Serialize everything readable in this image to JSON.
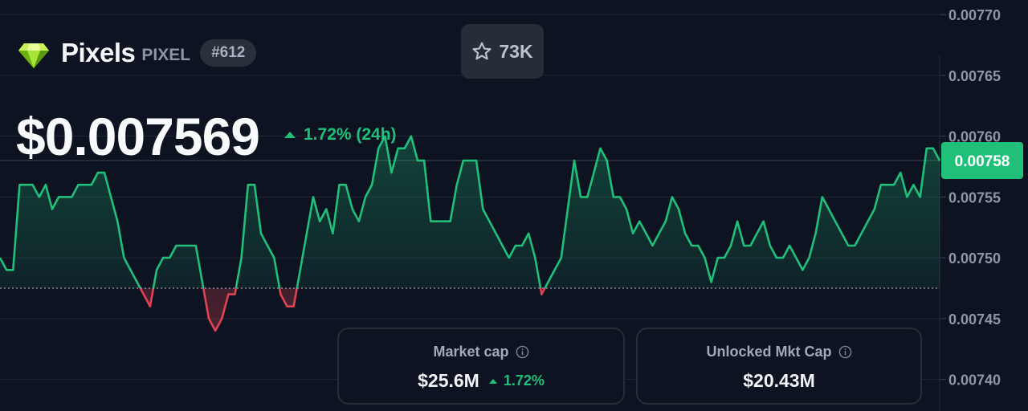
{
  "coin": {
    "name": "Pixels",
    "symbol": "PIXEL",
    "rank": "#612"
  },
  "watchlist": {
    "count": "73K",
    "icon": "star-icon"
  },
  "price": {
    "value": "$0.007569",
    "change": "1.72% (24h)"
  },
  "cards": [
    {
      "label": "Market cap",
      "value": "$25.6M",
      "change": "1.72%",
      "icon": "info-icon"
    },
    {
      "label": "Unlocked Mkt Cap",
      "value": "$20.43M",
      "icon": "info-icon"
    }
  ],
  "colors": {
    "background": "#0d1320",
    "up": "#20c07b",
    "down": "#e04354",
    "grid": "#202634",
    "current_price_tag": "#20c07b"
  },
  "chart_data": {
    "type": "area",
    "y_ticks": [
      "0.00770",
      "0.00765",
      "0.00760",
      "0.00755",
      "0.00750",
      "0.00745",
      "0.00740"
    ],
    "ylim": [
      0.007374,
      0.007712
    ],
    "current_price_label": "0.00758",
    "current_price": 0.00758,
    "baseline": 0.007475,
    "grid": true,
    "series": [
      {
        "values": [
          0.0075,
          0.00749,
          0.00749,
          0.00756,
          0.00756,
          0.00756,
          0.00755,
          0.00756,
          0.00754,
          0.00755,
          0.00755,
          0.00755,
          0.00756,
          0.00756,
          0.00756,
          0.00757,
          0.00757,
          0.00755,
          0.00753,
          0.0075,
          0.00749,
          0.00748,
          0.00747,
          0.00746,
          0.00749,
          0.0075,
          0.0075,
          0.00751,
          0.00751,
          0.00751,
          0.00751,
          0.00748,
          0.00745,
          0.00744,
          0.00745,
          0.00747,
          0.00747,
          0.0075,
          0.00756,
          0.00756,
          0.00752,
          0.00751,
          0.0075,
          0.00747,
          0.00746,
          0.00746,
          0.00749,
          0.00752,
          0.00755,
          0.00753,
          0.00754,
          0.00752,
          0.00756,
          0.00756,
          0.00754,
          0.00753,
          0.00755,
          0.00756,
          0.00759,
          0.0076,
          0.00757,
          0.00759,
          0.00759,
          0.0076,
          0.00758,
          0.00758,
          0.00753,
          0.00753,
          0.00753,
          0.00753,
          0.00756,
          0.00758,
          0.00758,
          0.00758,
          0.00754,
          0.00753,
          0.00752,
          0.00751,
          0.0075,
          0.00751,
          0.00751,
          0.00752,
          0.0075,
          0.00747,
          0.00748,
          0.00749,
          0.0075,
          0.00754,
          0.00758,
          0.00755,
          0.00755,
          0.00757,
          0.00759,
          0.00758,
          0.00755,
          0.00755,
          0.00754,
          0.00752,
          0.00753,
          0.00752,
          0.00751,
          0.00752,
          0.00753,
          0.00755,
          0.00754,
          0.00752,
          0.00751,
          0.00751,
          0.0075,
          0.00748,
          0.0075,
          0.0075,
          0.00751,
          0.00753,
          0.00751,
          0.00751,
          0.00752,
          0.00753,
          0.00751,
          0.0075,
          0.0075,
          0.00751,
          0.0075,
          0.00749,
          0.0075,
          0.00752,
          0.00755,
          0.00754,
          0.00753,
          0.00752,
          0.00751,
          0.00751,
          0.00752,
          0.00753,
          0.00754,
          0.00756,
          0.00756,
          0.00756,
          0.00757,
          0.00755,
          0.00756,
          0.00755,
          0.00759,
          0.00759,
          0.00758
        ]
      }
    ]
  }
}
